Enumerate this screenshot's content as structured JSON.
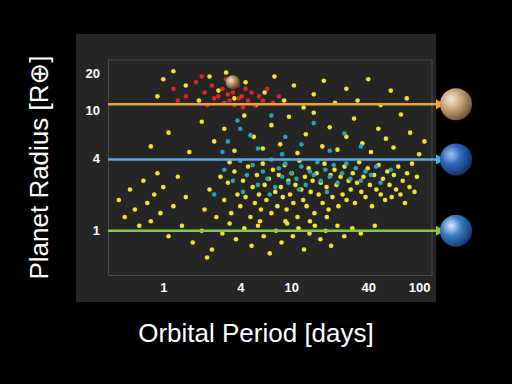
{
  "chart_data": {
    "type": "scatter",
    "xlabel": "Orbital Period [days]",
    "ylabel": "Planet Radius [R⊕]",
    "log": true,
    "grid": false,
    "xlim": [
      0.37,
      126
    ],
    "ylim": [
      0.43,
      26
    ],
    "xticks": [
      1,
      4,
      10,
      40,
      100
    ],
    "yticks": [
      1,
      4,
      10,
      20
    ],
    "hlines": [
      {
        "value": 11.2,
        "color": "#f0a23c"
      },
      {
        "value": 3.9,
        "color": "#5aa9e6"
      },
      {
        "value": 1,
        "color": "#8cc63f"
      }
    ],
    "highlight": {
      "x": 3.5,
      "y": 17,
      "color": "#b08a5a"
    },
    "series": [
      {
        "color": "#f2e32b",
        "x": [
          2.1,
          2.3,
          2.6,
          2.8,
          3.0,
          3.2,
          3.4,
          3.6,
          3.8,
          4.0,
          4.2,
          4.4,
          4.6,
          4.8,
          5.0,
          5.2,
          5.4,
          5.6,
          5.8,
          6.0,
          6.2,
          6.4,
          6.7,
          7.0,
          7.2,
          7.5,
          7.8,
          8.0,
          8.3,
          8.6,
          8.9,
          9.2,
          9.5,
          9.8,
          10.1,
          10.4,
          10.8,
          11.2,
          11.6,
          12.0,
          12.4,
          12.8,
          13.2,
          13.7,
          14.2,
          14.7,
          15.2,
          15.8,
          16.4,
          17.0,
          17.6,
          18.2,
          18.9,
          19.6,
          20.3,
          21.0,
          21.8,
          22.6,
          23.4,
          24.3,
          25.2,
          26.1,
          27.1,
          28.1,
          29.2,
          30.3,
          31.5,
          32.7,
          34.0,
          35.3,
          36.7,
          38.1,
          39.6,
          41.2,
          42.8,
          44.5,
          46.3,
          48.2,
          50.1,
          52.1,
          54.2,
          56.4,
          58.7,
          61.0,
          63.5,
          66.0,
          68.7,
          71.5,
          74.4,
          77.4,
          80.5,
          84.0,
          88.0,
          92.0,
          96.0,
          3.3,
          5.7,
          9.0,
          14.0,
          19.0,
          1.1,
          1.4,
          1.7,
          2.0,
          2.4,
          2.9,
          3.3,
          3.7,
          4.3,
          4.9,
          5.5,
          6.1,
          6.8,
          7.6,
          8.4,
          9.3,
          10.3,
          11.4,
          12.6,
          13.9,
          15.3,
          16.9,
          18.6,
          20.5,
          23.0,
          26.0,
          30.0,
          35.0,
          45.0,
          2.2,
          0.45,
          0.5,
          0.55,
          0.6,
          0.65,
          0.7,
          0.75,
          0.8,
          0.85,
          0.9,
          0.95,
          1.0,
          1.2,
          1.3,
          1.5,
          0.8,
          1.1,
          1.6,
          2.0,
          2.5,
          3.0,
          3.6,
          4.3,
          5.1,
          6.0,
          7.0,
          8.2,
          9.6,
          11.2,
          13.0,
          15.0,
          17.5,
          20.0,
          23.0,
          27.0,
          31.0,
          36.0,
          42.0,
          48.0,
          55.0,
          63.0,
          72.0,
          85.0,
          100.0,
          110.0,
          1.0,
          1.2,
          1.5,
          1.9,
          2.3,
          2.7,
          3.1,
          3.6,
          4.4,
          5.3,
          6.2,
          7.4,
          8.8,
          10.5,
          12.5,
          15.0,
          18.0,
          22.0,
          27.0,
          33.0,
          40.0,
          50.0,
          60.0,
          80.0,
          0.9
        ],
        "values": [
          1.5,
          2.2,
          1.3,
          2.8,
          1.8,
          2.5,
          1.4,
          3.1,
          2.0,
          1.6,
          2.6,
          1.9,
          3.4,
          1.3,
          2.3,
          1.7,
          2.9,
          2.0,
          1.5,
          3.6,
          2.4,
          1.8,
          2.7,
          1.4,
          3.2,
          2.1,
          1.6,
          2.9,
          2.3,
          1.9,
          3.5,
          1.5,
          2.6,
          2.0,
          3.0,
          1.7,
          2.4,
          1.3,
          3.8,
          2.2,
          1.8,
          2.8,
          1.6,
          3.3,
          2.1,
          2.6,
          1.4,
          3.0,
          2.0,
          2.5,
          1.7,
          3.6,
          2.3,
          1.5,
          2.9,
          1.9,
          3.2,
          2.4,
          1.6,
          2.8,
          2.0,
          3.4,
          1.8,
          2.6,
          2.2,
          3.0,
          1.7,
          2.5,
          3.7,
          2.1,
          2.8,
          1.9,
          3.3,
          2.4,
          1.6,
          2.9,
          2.2,
          3.5,
          2.0,
          2.7,
          1.8,
          3.1,
          2.4,
          1.9,
          2.9,
          2.2,
          3.4,
          2.0,
          2.6,
          1.7,
          3.0,
          2.3,
          3.6,
          2.1,
          2.8,
          3.7,
          1.2,
          1.2,
          1.2,
          1.3,
          0.9,
          1.1,
          0.8,
          1.0,
          0.7,
          0.95,
          1.15,
          0.85,
          1.05,
          0.75,
          1.1,
          0.9,
          0.65,
          1.0,
          0.8,
          1.15,
          0.9,
          1.05,
          0.7,
          0.95,
          1.1,
          0.85,
          1.0,
          0.75,
          1.1,
          0.9,
          1.05,
          0.95,
          1.1,
          0.6,
          1.8,
          1.3,
          2.2,
          1.5,
          1.1,
          2.6,
          1.7,
          1.2,
          2.0,
          3.0,
          1.4,
          2.3,
          1.6,
          2.8,
          1.9,
          5.0,
          6.5,
          4.5,
          8.0,
          5.5,
          7.0,
          4.6,
          9.0,
          6.0,
          4.8,
          7.5,
          5.2,
          8.8,
          4.4,
          6.3,
          9.5,
          5.0,
          7.2,
          4.7,
          6.0,
          8.5,
          5.3,
          4.5,
          7.0,
          5.8,
          4.9,
          9.2,
          6.5,
          4.3,
          5.5,
          18,
          21,
          16,
          12,
          19,
          14.5,
          20.5,
          12.5,
          17,
          11,
          14,
          19,
          12,
          16,
          10.5,
          13.5,
          17.5,
          11.5,
          15,
          12,
          18,
          11,
          14.5,
          12.5,
          13
        ]
      },
      {
        "color": "#26a3b5",
        "x": [
          3.0,
          3.5,
          4.0,
          4.5,
          5.0,
          5.5,
          6.0,
          6.5,
          7.0,
          7.5,
          8.0,
          8.5,
          9.0,
          9.5,
          10.0,
          11.0,
          12.0,
          13.0,
          14.0,
          15.0,
          16.0,
          17.0,
          18.5,
          20.0,
          21.5,
          23.0,
          25.0,
          27.0,
          29.0,
          32.0,
          35.0,
          38.0,
          42.0,
          46.0,
          50.0,
          2.5,
          4.2,
          6.8,
          11.5,
          19.0,
          3.2,
          4.0,
          5.5,
          7.0,
          9.0,
          12.0,
          15.0,
          20.0,
          26.0,
          35.0,
          3.8,
          4.8,
          2.9,
          60.0,
          8.5
        ],
        "values": [
          3.2,
          2.6,
          3.8,
          2.9,
          3.5,
          2.4,
          3.1,
          2.7,
          3.9,
          2.3,
          3.3,
          2.8,
          3.6,
          2.5,
          3.0,
          2.7,
          3.4,
          2.4,
          3.1,
          2.9,
          3.7,
          2.6,
          3.2,
          2.8,
          3.5,
          2.5,
          3.0,
          3.6,
          2.7,
          3.3,
          2.6,
          3.1,
          2.9,
          3.4,
          2.5,
          2.0,
          2.1,
          2.0,
          2.2,
          2.1,
          5.5,
          7.0,
          4.8,
          9.0,
          6.0,
          5.2,
          7.8,
          4.6,
          6.4,
          5.0,
          8.2,
          6.2,
          4.5,
          3.2,
          4.3
        ]
      },
      {
        "color": "#d9262b",
        "x": [
          1.2,
          1.5,
          1.8,
          2.1,
          2.2,
          2.4,
          2.5,
          2.7,
          2.9,
          3.0,
          3.1,
          3.2,
          3.3,
          3.5,
          3.6,
          3.8,
          3.9,
          4.1,
          4.2,
          4.4,
          4.6,
          4.9,
          5.2,
          5.6,
          6.0,
          6.5,
          7.2,
          8.0,
          2.0,
          1.3
        ],
        "values": [
          15,
          13,
          17,
          14,
          11,
          16,
          12.5,
          13,
          15,
          11.5,
          18,
          13.5,
          12,
          14,
          11,
          16,
          12.5,
          13,
          10.5,
          15,
          12,
          14,
          11,
          13,
          12,
          15,
          11.5,
          13,
          19,
          12
        ]
      }
    ]
  }
}
